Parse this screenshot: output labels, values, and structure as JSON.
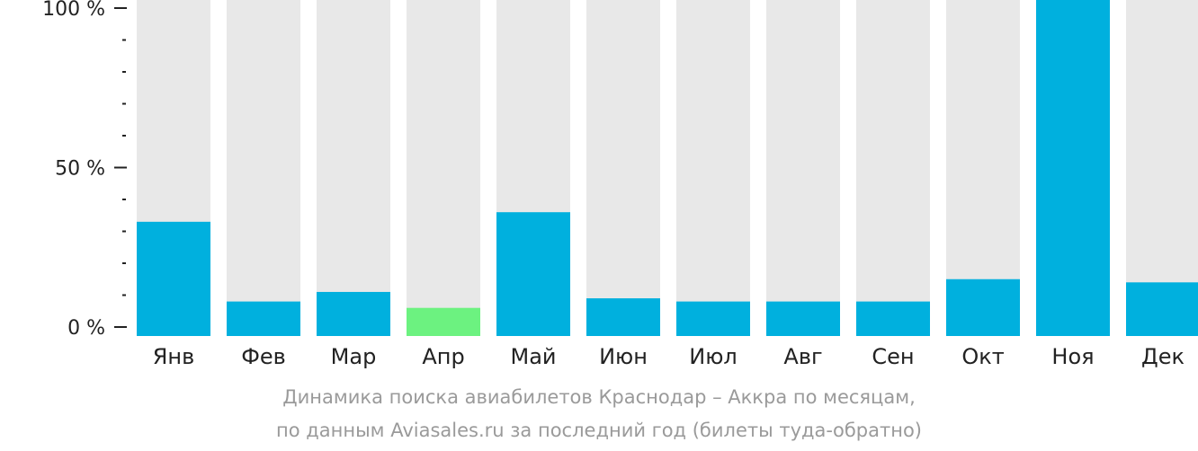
{
  "chart_data": {
    "type": "bar",
    "categories": [
      "Янв",
      "Фев",
      "Мар",
      "Апр",
      "Май",
      "Июн",
      "Июл",
      "Авг",
      "Сен",
      "Окт",
      "Ноя",
      "Дек"
    ],
    "values": [
      33,
      8,
      11,
      6,
      36,
      9,
      8,
      8,
      8,
      15,
      100,
      14
    ],
    "highlight_index": 3,
    "ylim": [
      0,
      100
    ],
    "yticks": [
      {
        "value": 0,
        "label": "0 %"
      },
      {
        "value": 50,
        "label": "50 %"
      },
      {
        "value": 100,
        "label": "100 %"
      }
    ],
    "minor_tick_step": 10,
    "grid": false,
    "legend": "none",
    "colors": {
      "bar": "#00b0de",
      "highlight": "#6cf280",
      "background_bar": "#e8e8e8",
      "axis": "#222222",
      "caption": "#9a9a9a"
    },
    "caption": {
      "line1": "Динамика поиска авиабилетов Краснодар – Аккра по месяцам,",
      "line2": "по данным Aviasales.ru за последний год (билеты туда-обратно)"
    }
  }
}
